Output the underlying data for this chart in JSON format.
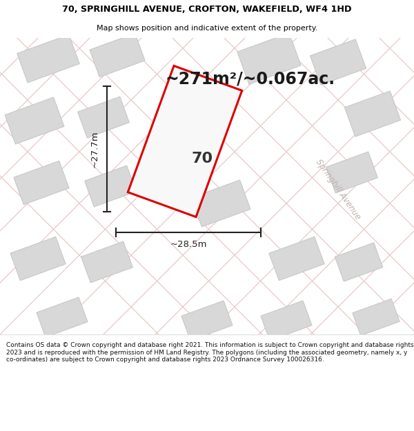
{
  "title_line1": "70, SPRINGHILL AVENUE, CROFTON, WAKEFIELD, WF4 1HD",
  "title_line2": "Map shows position and indicative extent of the property.",
  "area_text": "~271m²/~0.067ac.",
  "property_number": "70",
  "width_label": "~28.5m",
  "height_label": "~27.7m",
  "street_label": "Springhill Avenue",
  "footer_text": "Contains OS data © Crown copyright and database right 2021. This information is subject to Crown copyright and database rights 2023 and is reproduced with the permission of HM Land Registry. The polygons (including the associated geometry, namely x, y co-ordinates) are subject to Crown copyright and database rights 2023 Ordnance Survey 100026316.",
  "map_bg_color": "#f5f3f0",
  "road_line_color": "#e8c8c8",
  "building_color": "#d8d8d8",
  "building_stroke": "#c8c8c8",
  "plot_outline_color": "#dd0000",
  "plot_fill_color": "#f8f8f8",
  "dim_line_color": "#222222",
  "street_text_color": "#c0b0b0",
  "title_color": "#000000",
  "footer_color": "#111111",
  "header_bg": "#ffffff",
  "footer_bg": "#ffffff",
  "road_line_color2": "#e0d0d0",
  "road_line_color3": "#f0e8e8"
}
